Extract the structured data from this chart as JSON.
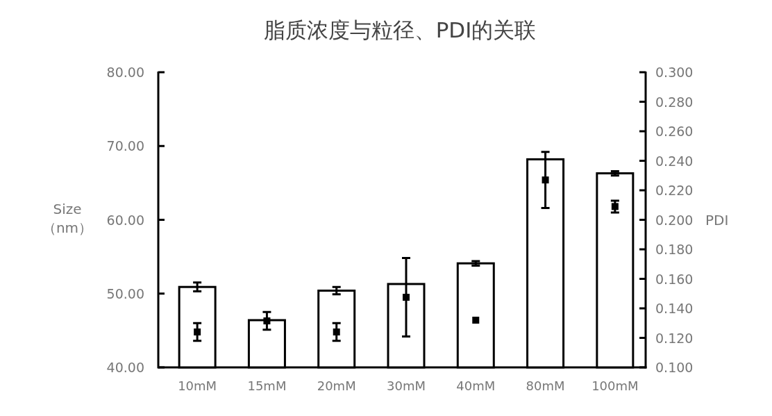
{
  "chart_data": {
    "type": "bar",
    "title": "脂质浓度与粒径、PDI的关联",
    "ylabel": "Size\n（nm）",
    "y2label": "PDI",
    "categories": [
      "10mM",
      "15mM",
      "20mM",
      "30mM",
      "40mM",
      "80mM",
      "100mM"
    ],
    "series": [
      {
        "color": "#ffffff",
        "values": [
          50.9,
          46.4,
          50.4,
          51.3,
          54.1,
          68.2,
          66.3
        ],
        "errors": [
          0.6,
          null,
          0.5,
          null,
          0.3,
          null,
          0.3
        ]
      },
      {
        "type": "scatter",
        "axis": "y2",
        "color": "#000000",
        "marker": "square",
        "values": [
          0.124,
          0.1315,
          0.124,
          0.1475,
          0.132,
          0.227,
          0.209
        ],
        "errors": [
          0.006,
          0.006,
          0.006,
          0.0266,
          null,
          0.019,
          0.004
        ]
      }
    ],
    "ylim": [
      40,
      80
    ],
    "yticks": [
      {
        "value": 40,
        "label": "40.00"
      },
      {
        "value": 50,
        "label": "50.00"
      },
      {
        "value": 60,
        "label": "60.00"
      },
      {
        "value": 70,
        "label": "70.00"
      },
      {
        "value": 80,
        "label": "80.00"
      }
    ],
    "y2lim": [
      0.1,
      0.3
    ],
    "y2ticks": [
      {
        "value": 0.1,
        "label": "0.100"
      },
      {
        "value": 0.12,
        "label": "0.120"
      },
      {
        "value": 0.14,
        "label": "0.140"
      },
      {
        "value": 0.16,
        "label": "0.160"
      },
      {
        "value": 0.18,
        "label": "0.180"
      },
      {
        "value": 0.2,
        "label": "0.200"
      },
      {
        "value": 0.22,
        "label": "0.220"
      },
      {
        "value": 0.24,
        "label": "0.240"
      },
      {
        "value": 0.26,
        "label": "0.260"
      },
      {
        "value": 0.28,
        "label": "0.280"
      },
      {
        "value": 0.3,
        "label": "0.300"
      }
    ],
    "grid": false
  }
}
